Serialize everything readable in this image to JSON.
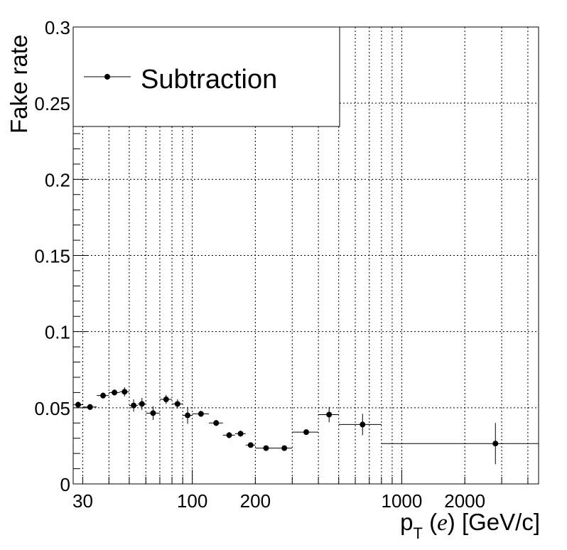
{
  "chart_data": {
    "type": "scatter",
    "ylabel": "Fake rate",
    "xlabel": {
      "main": "p",
      "sub": "T",
      "var_open": " (",
      "var": "e",
      "var_close": ")",
      "unit": " [GeV/c]"
    },
    "xscale": "log",
    "xlim": [
      27,
      4500
    ],
    "ylim": [
      0,
      0.3
    ],
    "grid": true,
    "x_tick_labels": [
      {
        "x": 30,
        "label": "30"
      },
      {
        "x": 100,
        "label": "100"
      },
      {
        "x": 200,
        "label": "200"
      },
      {
        "x": 1000,
        "label": "1000"
      },
      {
        "x": 2000,
        "label": "2000"
      }
    ],
    "y_tick_labels": [
      {
        "y": 0,
        "label": "0"
      },
      {
        "y": 0.05,
        "label": "0.05"
      },
      {
        "y": 0.1,
        "label": "0.1"
      },
      {
        "y": 0.15,
        "label": "0.15"
      },
      {
        "y": 0.2,
        "label": "0.2"
      },
      {
        "y": 0.25,
        "label": "0.25"
      },
      {
        "y": 0.3,
        "label": "0.3"
      }
    ],
    "legend": {
      "position": "top-left",
      "entries": [
        "Subtraction"
      ]
    },
    "series": [
      {
        "name": "Subtraction",
        "color": "#000000",
        "points": [
          {
            "x": 28.5,
            "xlo": 27,
            "xhi": 30,
            "y": 0.052,
            "yerr": 0.002
          },
          {
            "x": 32.5,
            "xlo": 30,
            "xhi": 35,
            "y": 0.0505,
            "yerr": 0.002
          },
          {
            "x": 37.5,
            "xlo": 35,
            "xhi": 40,
            "y": 0.058,
            "yerr": 0.002
          },
          {
            "x": 42.5,
            "xlo": 40,
            "xhi": 45,
            "y": 0.06,
            "yerr": 0.002
          },
          {
            "x": 47.5,
            "xlo": 45,
            "xhi": 50,
            "y": 0.0605,
            "yerr": 0.003
          },
          {
            "x": 52.5,
            "xlo": 50,
            "xhi": 55,
            "y": 0.0515,
            "yerr": 0.004
          },
          {
            "x": 57.5,
            "xlo": 55,
            "xhi": 60,
            "y": 0.0525,
            "yerr": 0.004
          },
          {
            "x": 65,
            "xlo": 60,
            "xhi": 70,
            "y": 0.0465,
            "yerr": 0.0045
          },
          {
            "x": 75,
            "xlo": 70,
            "xhi": 80,
            "y": 0.0555,
            "yerr": 0.003
          },
          {
            "x": 85,
            "xlo": 80,
            "xhi": 90,
            "y": 0.0525,
            "yerr": 0.003
          },
          {
            "x": 95,
            "xlo": 90,
            "xhi": 100,
            "y": 0.045,
            "yerr": 0.0055
          },
          {
            "x": 110,
            "xlo": 100,
            "xhi": 120,
            "y": 0.046,
            "yerr": 0.002
          },
          {
            "x": 130,
            "xlo": 120,
            "xhi": 140,
            "y": 0.04,
            "yerr": 0.002
          },
          {
            "x": 150,
            "xlo": 140,
            "xhi": 160,
            "y": 0.032,
            "yerr": 0.002
          },
          {
            "x": 170,
            "xlo": 160,
            "xhi": 180,
            "y": 0.033,
            "yerr": 0.002
          },
          {
            "x": 190,
            "xlo": 180,
            "xhi": 200,
            "y": 0.0255,
            "yerr": 0.001
          },
          {
            "x": 225,
            "xlo": 200,
            "xhi": 250,
            "y": 0.0235,
            "yerr": 0.001
          },
          {
            "x": 275,
            "xlo": 250,
            "xhi": 300,
            "y": 0.0235,
            "yerr": 0.001
          },
          {
            "x": 350,
            "xlo": 300,
            "xhi": 400,
            "y": 0.034,
            "yerr": 0.0015
          },
          {
            "x": 450,
            "xlo": 400,
            "xhi": 500,
            "y": 0.0455,
            "yerr": 0.005
          },
          {
            "x": 650,
            "xlo": 500,
            "xhi": 800,
            "y": 0.039,
            "yerr": 0.007
          },
          {
            "x": 2800,
            "xlo": 800,
            "xhi": 4500,
            "y": 0.0265,
            "yerr": 0.0135
          }
        ]
      }
    ]
  }
}
